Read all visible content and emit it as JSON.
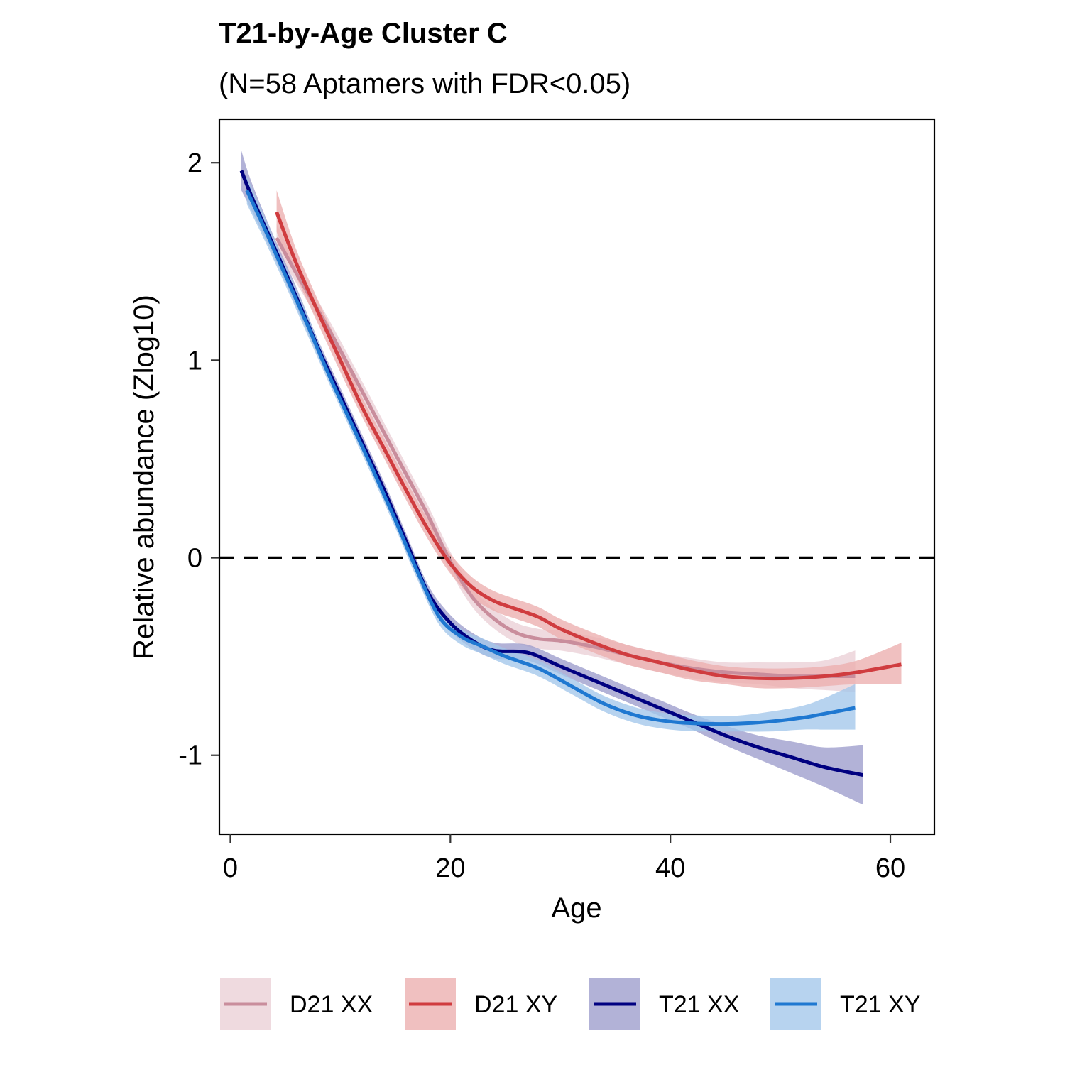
{
  "chart_data": {
    "type": "line",
    "title": "T21-by-Age Cluster C",
    "subtitle": "(N=58 Aptamers with FDR<0.05)",
    "xlabel": "Age",
    "ylabel": "Relative abundance (Zlog10)",
    "xlim": [
      -1,
      64
    ],
    "ylim": [
      -1.4,
      2.22
    ],
    "xticks": [
      0,
      20,
      40,
      60
    ],
    "yticks": [
      2,
      1,
      0,
      -1
    ],
    "reference_line": {
      "y": 0,
      "style": "dashed"
    },
    "grid": false,
    "legend_position": "bottom",
    "series": [
      {
        "name": "D21 XX",
        "color": "#c98d9c",
        "band_color": "#ebd0d6",
        "x": [
          4.2,
          6,
          8,
          10,
          12,
          14,
          16,
          18,
          20,
          22,
          24,
          26,
          28,
          30,
          33,
          36,
          39,
          42,
          45,
          48,
          51,
          54,
          56.8
        ],
        "y": [
          1.62,
          1.44,
          1.25,
          1.05,
          0.84,
          0.63,
          0.42,
          0.21,
          -0.02,
          -0.2,
          -0.31,
          -0.38,
          -0.41,
          -0.42,
          -0.45,
          -0.49,
          -0.53,
          -0.56,
          -0.58,
          -0.59,
          -0.6,
          -0.6,
          -0.6
        ],
        "lower": [
          1.55,
          1.39,
          1.2,
          1.0,
          0.79,
          0.58,
          0.37,
          0.16,
          -0.07,
          -0.25,
          -0.36,
          -0.43,
          -0.46,
          -0.47,
          -0.5,
          -0.54,
          -0.58,
          -0.61,
          -0.63,
          -0.64,
          -0.66,
          -0.67,
          -0.68
        ],
        "upper": [
          1.69,
          1.49,
          1.3,
          1.1,
          0.89,
          0.68,
          0.47,
          0.26,
          0.03,
          -0.15,
          -0.26,
          -0.33,
          -0.36,
          -0.37,
          -0.4,
          -0.44,
          -0.48,
          -0.51,
          -0.53,
          -0.53,
          -0.53,
          -0.52,
          -0.47
        ]
      },
      {
        "name": "D21 XY",
        "color": "#d03c3f",
        "band_color": "#ecaeae",
        "x": [
          4.2,
          6,
          8,
          10,
          12,
          14,
          16,
          18,
          20,
          22,
          24,
          26,
          28,
          30,
          33,
          36,
          39,
          42,
          45,
          48,
          51,
          54,
          57,
          61
        ],
        "y": [
          1.75,
          1.49,
          1.24,
          1.0,
          0.76,
          0.55,
          0.34,
          0.14,
          -0.03,
          -0.15,
          -0.22,
          -0.26,
          -0.3,
          -0.36,
          -0.43,
          -0.49,
          -0.53,
          -0.57,
          -0.6,
          -0.61,
          -0.61,
          -0.6,
          -0.58,
          -0.54
        ],
        "lower": [
          1.65,
          1.42,
          1.18,
          0.94,
          0.71,
          0.5,
          0.29,
          0.09,
          -0.08,
          -0.2,
          -0.27,
          -0.31,
          -0.35,
          -0.41,
          -0.48,
          -0.54,
          -0.58,
          -0.62,
          -0.64,
          -0.66,
          -0.66,
          -0.65,
          -0.64,
          -0.64
        ],
        "upper": [
          1.86,
          1.56,
          1.3,
          1.06,
          0.81,
          0.6,
          0.39,
          0.19,
          0.02,
          -0.1,
          -0.17,
          -0.21,
          -0.25,
          -0.31,
          -0.38,
          -0.44,
          -0.48,
          -0.52,
          -0.55,
          -0.56,
          -0.56,
          -0.55,
          -0.52,
          -0.43
        ]
      },
      {
        "name": "T21 XX",
        "color": "#000080",
        "band_color": "#9c9ccc",
        "x": [
          1,
          2,
          4,
          6,
          8,
          10,
          12,
          14,
          16,
          18,
          20,
          22,
          24,
          27,
          30,
          33,
          36,
          39,
          42,
          45,
          48,
          51,
          54,
          57.5
        ],
        "y": [
          1.96,
          1.82,
          1.57,
          1.32,
          1.06,
          0.82,
          0.58,
          0.34,
          0.08,
          -0.18,
          -0.33,
          -0.42,
          -0.47,
          -0.48,
          -0.55,
          -0.62,
          -0.69,
          -0.76,
          -0.83,
          -0.9,
          -0.96,
          -1.01,
          -1.06,
          -1.1
        ],
        "lower": [
          1.86,
          1.75,
          1.52,
          1.27,
          1.02,
          0.78,
          0.54,
          0.3,
          0.04,
          -0.22,
          -0.37,
          -0.46,
          -0.51,
          -0.52,
          -0.59,
          -0.66,
          -0.73,
          -0.8,
          -0.87,
          -0.95,
          -1.02,
          -1.09,
          -1.16,
          -1.25
        ],
        "upper": [
          2.06,
          1.89,
          1.62,
          1.37,
          1.1,
          0.86,
          0.62,
          0.38,
          0.12,
          -0.14,
          -0.29,
          -0.38,
          -0.43,
          -0.44,
          -0.51,
          -0.58,
          -0.65,
          -0.72,
          -0.79,
          -0.85,
          -0.9,
          -0.93,
          -0.96,
          -0.95
        ]
      },
      {
        "name": "T21 XY",
        "color": "#1f78d1",
        "band_color": "#a3c6ea",
        "x": [
          1.5,
          3,
          5,
          7,
          9,
          11,
          13,
          15,
          17,
          19,
          21,
          23,
          25,
          28,
          31,
          34,
          37,
          40,
          43,
          46,
          49,
          52,
          54,
          56.8
        ],
        "y": [
          1.86,
          1.68,
          1.43,
          1.18,
          0.92,
          0.68,
          0.44,
          0.19,
          -0.07,
          -0.3,
          -0.4,
          -0.45,
          -0.5,
          -0.56,
          -0.65,
          -0.74,
          -0.8,
          -0.83,
          -0.84,
          -0.84,
          -0.83,
          -0.81,
          -0.79,
          -0.76
        ],
        "lower": [
          1.79,
          1.62,
          1.38,
          1.13,
          0.88,
          0.64,
          0.4,
          0.15,
          -0.11,
          -0.34,
          -0.44,
          -0.49,
          -0.54,
          -0.6,
          -0.69,
          -0.78,
          -0.84,
          -0.87,
          -0.88,
          -0.88,
          -0.88,
          -0.87,
          -0.87,
          -0.87
        ],
        "upper": [
          1.93,
          1.74,
          1.48,
          1.23,
          0.96,
          0.72,
          0.48,
          0.23,
          -0.03,
          -0.26,
          -0.36,
          -0.41,
          -0.46,
          -0.52,
          -0.61,
          -0.7,
          -0.76,
          -0.79,
          -0.8,
          -0.8,
          -0.78,
          -0.75,
          -0.71,
          -0.64
        ]
      }
    ]
  }
}
